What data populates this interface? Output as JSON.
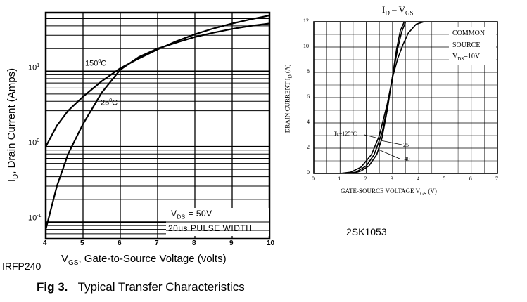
{
  "figure": {
    "caption_label": "Fig 3.",
    "caption_text": "Typical Transfer Characteristics",
    "left_part": "IRFP240",
    "right_part": "2SK1053"
  },
  "chart_data": [
    {
      "type": "line",
      "title": "",
      "ylabel_main": "I",
      "ylabel_sub": "D",
      "ylabel_rest": ", Drain Current (Amps)",
      "xlabel_main": "V",
      "xlabel_sub": "GS",
      "xlabel_rest": ", Gate-to-Source Voltage (volts)",
      "xlim": [
        4,
        10
      ],
      "ylim": [
        0.06,
        60
      ],
      "yscale": "log",
      "grid": true,
      "x_ticks": [
        "4",
        "5",
        "6",
        "7",
        "8",
        "9",
        "10"
      ],
      "y_ticks": [
        {
          "value": 0.1,
          "base": "10",
          "exp": "-1"
        },
        {
          "value": 1,
          "base": "10",
          "exp": "0"
        },
        {
          "value": 10,
          "base": "10",
          "exp": "1"
        }
      ],
      "annotation_line1_main": "V",
      "annotation_line1_sub": "DS",
      "annotation_line1_rest": " = 50V",
      "annotation_line2": "20us PULSE WIDTH",
      "series": [
        {
          "name": "150°C",
          "label_main": "150",
          "label_sup": "0",
          "label_rest": "C",
          "x": [
            4.0,
            4.3,
            4.6,
            5.0,
            5.5,
            6.0,
            6.5,
            7.0,
            7.5,
            8.0,
            8.5,
            9.0,
            9.5,
            10.0
          ],
          "y": [
            1.0,
            1.9,
            3.0,
            4.6,
            7.4,
            11.0,
            14.8,
            19.5,
            25,
            31,
            37,
            43,
            49,
            55
          ]
        },
        {
          "name": "25°C",
          "label_main": "25",
          "label_sup": "0",
          "label_rest": "C",
          "x": [
            4.0,
            4.3,
            4.6,
            5.0,
            5.5,
            6.0,
            6.5,
            7.0,
            7.5,
            8.0,
            8.5,
            9.0,
            9.5,
            10.0
          ],
          "y": [
            0.08,
            0.3,
            0.8,
            2.0,
            5.2,
            10.5,
            15.5,
            20,
            24,
            28.5,
            32.5,
            36.5,
            40,
            43
          ]
        }
      ]
    },
    {
      "type": "line",
      "title_main": "I",
      "title_sub": "D",
      "title_rest": " – V",
      "title_sub2": "GS",
      "ylabel_main": "DRAIN CURRENT  I",
      "ylabel_sub": "D",
      "ylabel_unit": "(A)",
      "xlabel_main": "GATE-SOURCE VOLTAGE  V",
      "xlabel_sub": "GS",
      "xlabel_unit": "(V)",
      "xlim": [
        0,
        7
      ],
      "ylim": [
        0,
        12
      ],
      "grid": true,
      "x_ticks": [
        "0",
        "1",
        "2",
        "3",
        "4",
        "5",
        "6",
        "7"
      ],
      "y_ticks": [
        "0",
        "2",
        "4",
        "6",
        "8",
        "10",
        "12"
      ],
      "legend_line1": "COMMON",
      "legend_line2": "SOURCE",
      "legend_line3_main": "V",
      "legend_line3_sub": "DS",
      "legend_line3_rest": "=10V",
      "series": [
        {
          "name": "Tc=125°C",
          "x": [
            1.0,
            1.4,
            1.8,
            2.2,
            2.5,
            2.8,
            3.0,
            3.2,
            3.4,
            3.6,
            3.9,
            4.2
          ],
          "y": [
            0,
            0.1,
            0.5,
            1.5,
            3.0,
            5.5,
            7.6,
            9.1,
            10.2,
            11.1,
            11.8,
            12.0
          ]
        },
        {
          "name": "25",
          "x": [
            1.2,
            1.6,
            2.0,
            2.3,
            2.6,
            2.8,
            3.0,
            3.2,
            3.35,
            3.5
          ],
          "y": [
            0,
            0.1,
            0.6,
            1.5,
            3.2,
            5.2,
            7.7,
            9.9,
            11.2,
            12.0
          ]
        },
        {
          "name": "-40",
          "x": [
            1.5,
            1.8,
            2.1,
            2.4,
            2.6,
            2.8,
            3.0,
            3.15,
            3.3,
            3.45
          ],
          "y": [
            0,
            0.2,
            0.6,
            1.5,
            2.8,
            5.0,
            7.7,
            9.8,
            11.3,
            12.0
          ]
        }
      ]
    }
  ]
}
